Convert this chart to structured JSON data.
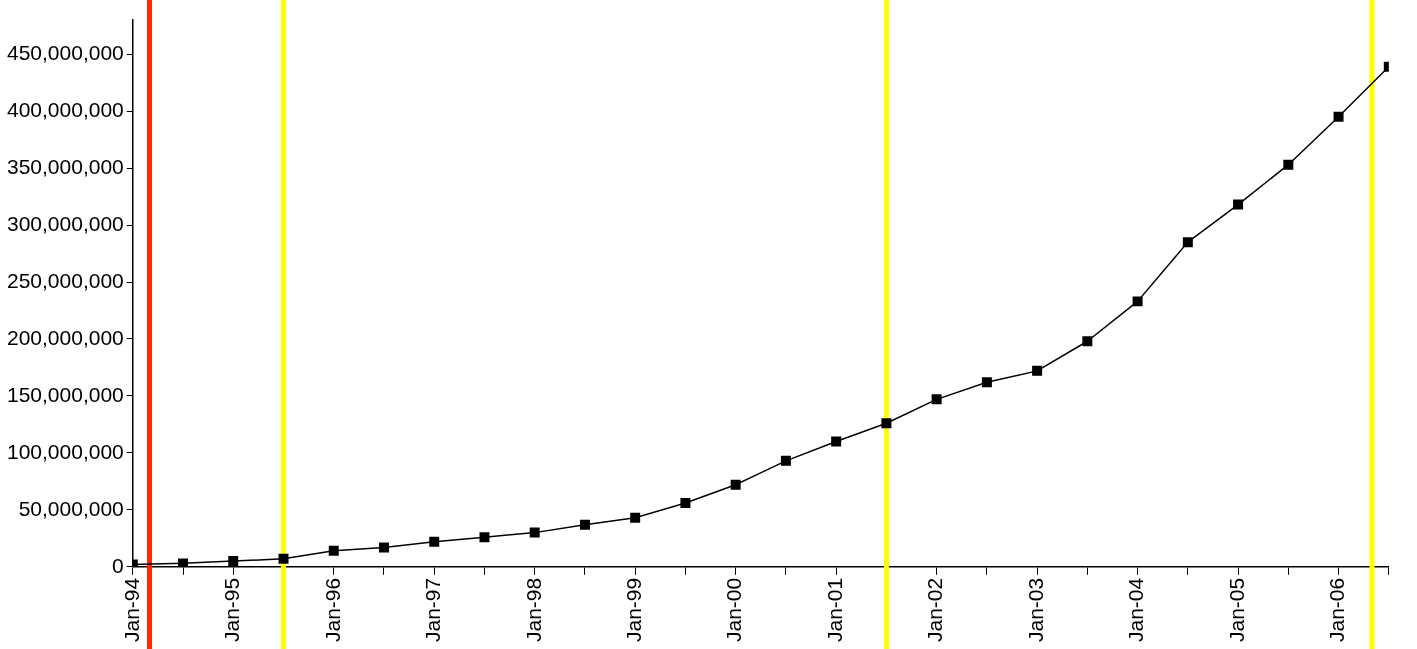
{
  "chart_data": {
    "type": "line",
    "marker": "square",
    "grid": false,
    "legend": false,
    "x": [
      "1994-01",
      "1994-07",
      "1995-01",
      "1995-07",
      "1996-01",
      "1996-07",
      "1997-01",
      "1997-07",
      "1998-01",
      "1998-07",
      "1999-01",
      "1999-07",
      "2000-01",
      "2000-07",
      "2001-01",
      "2001-07",
      "2002-01",
      "2002-07",
      "2003-01",
      "2003-07",
      "2004-01",
      "2004-07",
      "2005-01",
      "2005-07",
      "2006-01",
      "2006-07"
    ],
    "series": [
      {
        "color": "#000000",
        "values": [
          2000000,
          3000000,
          5000000,
          7000000,
          14000000,
          17000000,
          22000000,
          26000000,
          30000000,
          37000000,
          43000000,
          56000000,
          72000000,
          93000000,
          110000000,
          126000000,
          147000000,
          162000000,
          172000000,
          198000000,
          233000000,
          285000000,
          318000000,
          353000000,
          395000000,
          439000000
        ]
      }
    ],
    "xlim": [
      "1994-01",
      "2006-07"
    ],
    "xticks": [
      {
        "value": "1994-01",
        "label": "Jan-94"
      },
      {
        "value": "1994-07",
        "label": null
      },
      {
        "value": "1995-01",
        "label": "Jan-95"
      },
      {
        "value": "1995-07",
        "label": null
      },
      {
        "value": "1996-01",
        "label": "Jan-96"
      },
      {
        "value": "1996-07",
        "label": null
      },
      {
        "value": "1997-01",
        "label": "Jan-97"
      },
      {
        "value": "1997-07",
        "label": null
      },
      {
        "value": "1998-01",
        "label": "Jan-98"
      },
      {
        "value": "1998-07",
        "label": null
      },
      {
        "value": "1999-01",
        "label": "Jan-99"
      },
      {
        "value": "1999-07",
        "label": null
      },
      {
        "value": "2000-01",
        "label": "Jan-00"
      },
      {
        "value": "2000-07",
        "label": null
      },
      {
        "value": "2001-01",
        "label": "Jan-01"
      },
      {
        "value": "2001-07",
        "label": null
      },
      {
        "value": "2002-01",
        "label": "Jan-02"
      },
      {
        "value": "2002-07",
        "label": null
      },
      {
        "value": "2003-01",
        "label": "Jan-03"
      },
      {
        "value": "2003-07",
        "label": null
      },
      {
        "value": "2004-01",
        "label": "Jan-04"
      },
      {
        "value": "2004-07",
        "label": null
      },
      {
        "value": "2005-01",
        "label": "Jan-05"
      },
      {
        "value": "2005-07",
        "label": null
      },
      {
        "value": "2006-01",
        "label": "Jan-06"
      },
      {
        "value": "2006-07",
        "label": null
      }
    ],
    "ylim": [
      0,
      480000000
    ],
    "yticks": [
      {
        "value": 0,
        "label": "0"
      },
      {
        "value": 50000000,
        "label": "50,000,000"
      },
      {
        "value": 100000000,
        "label": "100,000,000"
      },
      {
        "value": 150000000,
        "label": "150,000,000"
      },
      {
        "value": 200000000,
        "label": "200,000,000"
      },
      {
        "value": 250000000,
        "label": "250,000,000"
      },
      {
        "value": 300000000,
        "label": "300,000,000"
      },
      {
        "value": 350000000,
        "label": "350,000,000"
      },
      {
        "value": 400000000,
        "label": "400,000,000"
      },
      {
        "value": 450000000,
        "label": "450,000,000"
      }
    ],
    "ref_lines": [
      {
        "axis": "x",
        "value": "1994-03",
        "color": "#ff2a00"
      },
      {
        "axis": "x",
        "value": "1995-07",
        "color": "#ffff00"
      },
      {
        "axis": "x",
        "value": "2001-07",
        "color": "#ffff00"
      },
      {
        "axis": "x",
        "value": "2006-05",
        "color": "#ffff00"
      }
    ]
  }
}
